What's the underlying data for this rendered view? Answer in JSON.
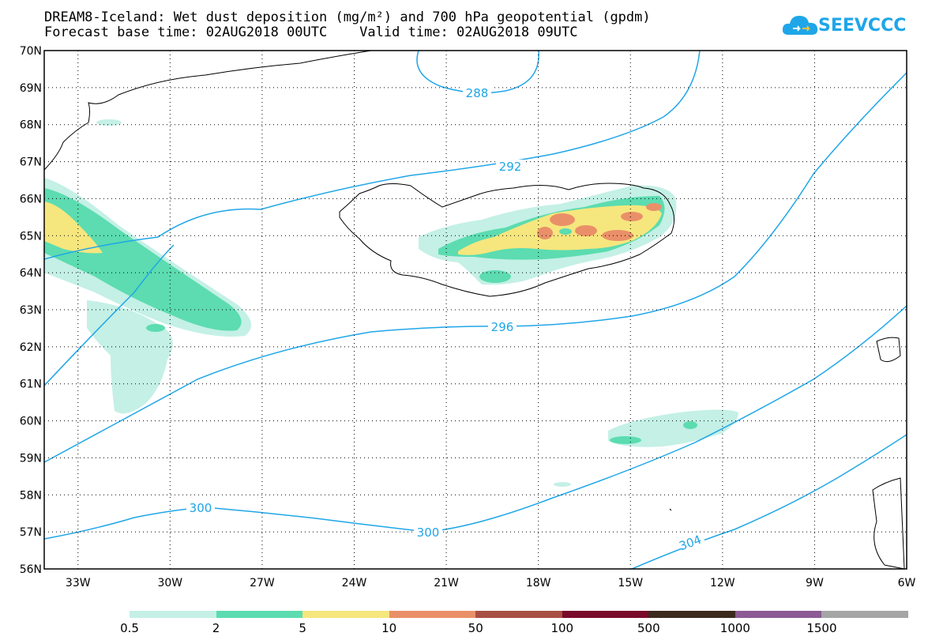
{
  "title_line1": "DREAM8-Iceland: Wet dust deposition (mg/m²) and 700 hPa geopotential (gpdm)",
  "title_line2": "Forecast base time: 02AUG2018 00UTC    Valid time: 02AUG2018 09UTC",
  "logo_text": "SEEVCCC",
  "colors": {
    "contour": "#1fa6e8",
    "legend": [
      "#c4f0e6",
      "#5cdcb0",
      "#f6e67e",
      "#ea9069",
      "#a84f45",
      "#7a0a2a",
      "#3c2a1e",
      "#8c5a94",
      "#a5a5a5"
    ]
  },
  "map": {
    "lat_labels": [
      "70N",
      "69N",
      "68N",
      "67N",
      "66N",
      "65N",
      "64N",
      "63N",
      "62N",
      "61N",
      "60N",
      "59N",
      "58N",
      "57N",
      "56N"
    ],
    "lon_labels": [
      "33W",
      "30W",
      "27W",
      "24W",
      "21W",
      "18W",
      "15W",
      "12W",
      "9W",
      "6W"
    ],
    "contour_labels": [
      "288",
      "292",
      "296",
      "300",
      "300",
      "304"
    ]
  },
  "legend": {
    "labels": [
      "0.5",
      "2",
      "5",
      "10",
      "50",
      "100",
      "500",
      "1000",
      "1500"
    ]
  }
}
